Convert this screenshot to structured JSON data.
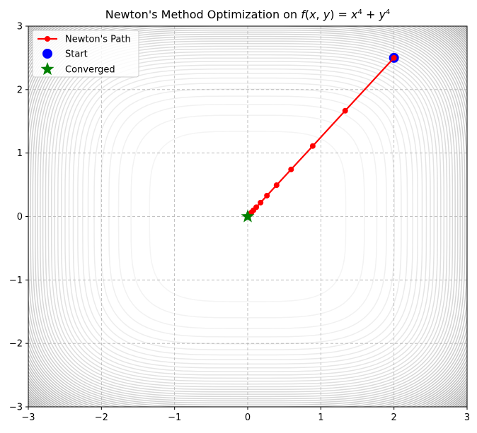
{
  "chart_data": {
    "type": "line",
    "title_prefix": "Newton's Method Optimization on ",
    "title_math": "f(x, y) = x4 + y4",
    "xlim": [
      -3,
      3
    ],
    "ylim": [
      -3,
      3
    ],
    "xticks": [
      -3,
      -2,
      -1,
      0,
      1,
      2,
      3
    ],
    "yticks": [
      -3,
      -2,
      -1,
      0,
      1,
      2,
      3
    ],
    "grid": true,
    "legend_position": "upper-left",
    "background": "contour plot of f(x,y) = x^4 + y^4 in grey",
    "series": [
      {
        "name": "Newton's Path",
        "color": "#ff0000",
        "x": [
          2.0,
          1.333,
          0.889,
          0.593,
          0.395,
          0.263,
          0.176,
          0.117,
          0.078,
          0.052,
          0.035,
          0.023,
          0.015,
          0.01,
          0.0
        ],
        "y": [
          2.5,
          1.667,
          1.111,
          0.741,
          0.494,
          0.329,
          0.219,
          0.146,
          0.098,
          0.065,
          0.043,
          0.029,
          0.019,
          0.013,
          0.0
        ]
      },
      {
        "name": "Start",
        "color": "#0000ff",
        "x": [
          2.0
        ],
        "y": [
          2.5
        ]
      },
      {
        "name": "Converged",
        "color": "#008000",
        "x": [
          0.0
        ],
        "y": [
          0.0
        ]
      }
    ]
  }
}
